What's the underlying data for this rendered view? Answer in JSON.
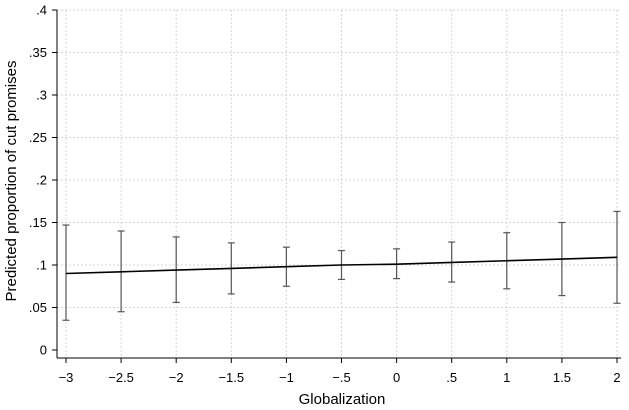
{
  "chart_data": {
    "type": "line",
    "title": "",
    "xlabel": "Globalization",
    "ylabel": "Predicted proportion of cut promises",
    "xlim": [
      -3,
      2
    ],
    "ylim": [
      0,
      0.4
    ],
    "grid": true,
    "x_ticks": [
      -3,
      -2.5,
      -2,
      -1.5,
      -1,
      -0.5,
      0,
      0.5,
      1,
      1.5,
      2
    ],
    "x_tick_labels": [
      "−3",
      "−2.5",
      "−2",
      "−1.5",
      "−1",
      "−.5",
      "0",
      ".5",
      "1",
      "1.5",
      "2"
    ],
    "y_ticks": [
      0,
      0.05,
      0.1,
      0.15,
      0.2,
      0.25,
      0.3,
      0.35,
      0.4
    ],
    "y_tick_labels": [
      "0",
      ".05",
      ".1",
      ".15",
      ".2",
      ".25",
      ".3",
      ".35",
      ".4"
    ],
    "series": [
      {
        "x": [
          -3,
          -2.5,
          -2,
          -1.5,
          -1,
          -0.5,
          0,
          0.5,
          1,
          1.5,
          2
        ],
        "values": [
          0.09,
          0.092,
          0.094,
          0.096,
          0.098,
          0.1,
          0.101,
          0.103,
          0.105,
          0.107,
          0.109
        ],
        "ci_lower": [
          0.035,
          0.045,
          0.056,
          0.066,
          0.075,
          0.083,
          0.084,
          0.08,
          0.072,
          0.064,
          0.055
        ],
        "ci_upper": [
          0.147,
          0.14,
          0.133,
          0.126,
          0.121,
          0.117,
          0.119,
          0.127,
          0.138,
          0.15,
          0.163
        ]
      }
    ]
  }
}
